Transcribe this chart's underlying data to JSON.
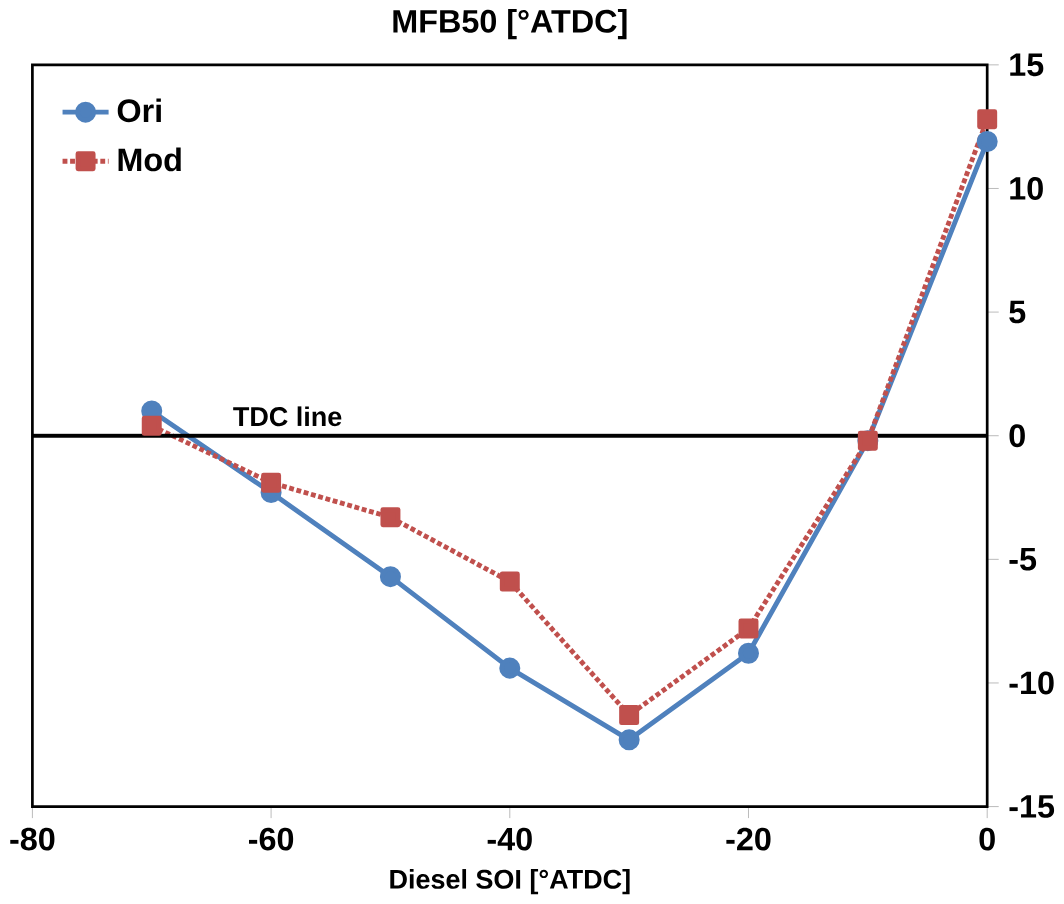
{
  "chart_data": {
    "type": "line",
    "title": "MFB50 [°ATDC]",
    "xlabel": "Diesel SOI [°ATDC]",
    "x": [
      -70,
      -60,
      -50,
      -40,
      -30,
      -20,
      -10,
      0
    ],
    "series": [
      {
        "name": "Ori",
        "color": "#4f81bd",
        "marker": "circle",
        "line_style": "solid",
        "values": [
          1.0,
          -2.3,
          -5.7,
          -9.4,
          -12.3,
          -8.8,
          -0.2,
          11.9
        ]
      },
      {
        "name": "Mod",
        "color": "#c0504d",
        "marker": "square",
        "line_style": "dotted",
        "values": [
          0.4,
          -1.9,
          -3.3,
          -5.9,
          -11.3,
          -7.8,
          -0.2,
          12.8
        ]
      }
    ],
    "xlim": [
      -80,
      0
    ],
    "ylim": [
      -15,
      15
    ],
    "xticks": [
      -80,
      -60,
      -40,
      -20,
      0
    ],
    "yticks": [
      -15,
      -10,
      -5,
      0,
      5,
      10,
      15
    ],
    "ref_lines": [
      {
        "axis": "y",
        "value": 0,
        "label": "TDC line",
        "color": "#000000",
        "line_style": "solid"
      }
    ],
    "grid": false,
    "legend": "top left"
  }
}
